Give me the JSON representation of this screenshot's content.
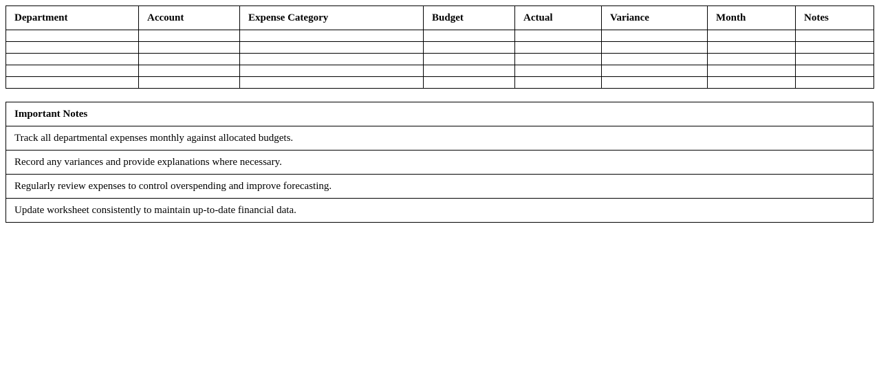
{
  "table": {
    "headers": [
      "Department",
      "Account",
      "Expense Category",
      "Budget",
      "Actual",
      "Variance",
      "Month",
      "Notes"
    ]
  },
  "notes": {
    "title": "Important Notes",
    "items": [
      "Track all departmental expenses monthly against allocated budgets.",
      "Record any variances and provide explanations where necessary.",
      "Regularly review expenses to control overspending and improve forecasting.",
      "Update worksheet consistently to maintain up-to-date financial data."
    ]
  }
}
